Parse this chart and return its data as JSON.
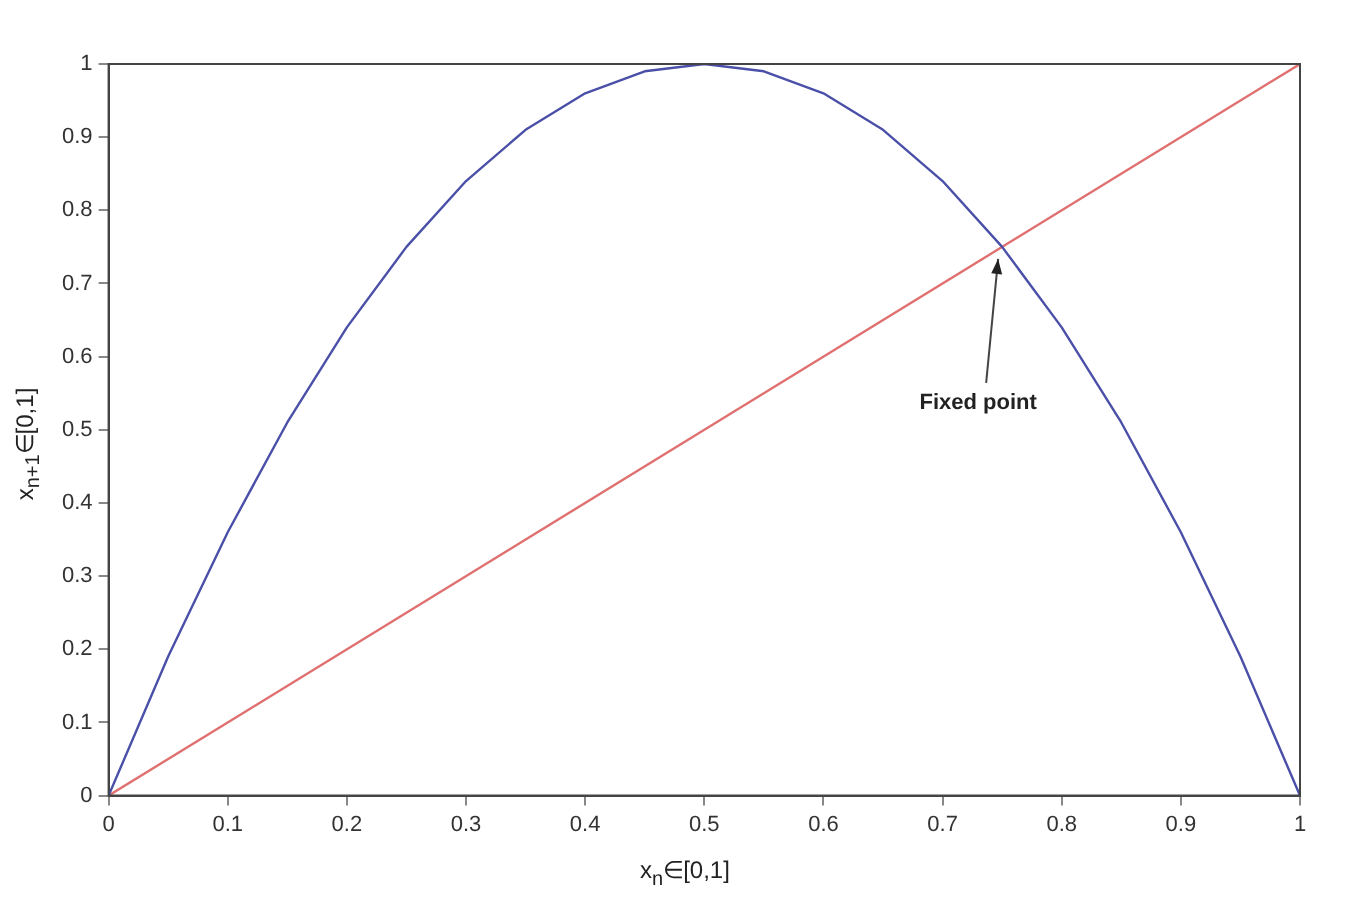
{
  "chart_data": {
    "type": "line",
    "xlabel": "x$_{n}$∈[0,1]",
    "ylabel": "x$_{n+1}$∈[0,1]",
    "xlim": [
      0,
      1
    ],
    "ylim": [
      0,
      1
    ],
    "xticks": [
      0,
      0.1,
      0.2,
      0.3,
      0.4,
      0.5,
      0.6,
      0.7,
      0.8,
      0.9,
      1
    ],
    "yticks": [
      0,
      0.1,
      0.2,
      0.3,
      0.4,
      0.5,
      0.6,
      0.7,
      0.8,
      0.9,
      1
    ],
    "grid": false,
    "legend": false,
    "marker": "none",
    "line_style": "solid",
    "series": [
      {
        "color": "#4a4fa8",
        "x": [
          0,
          0.05,
          0.1,
          0.15,
          0.2,
          0.25,
          0.3,
          0.35,
          0.4,
          0.45,
          0.5,
          0.55,
          0.6,
          0.65,
          0.7,
          0.75,
          0.8,
          0.85,
          0.9,
          0.95,
          1
        ],
        "values": [
          0,
          0.19,
          0.36,
          0.51,
          0.64,
          0.75,
          0.84,
          0.91,
          0.96,
          0.99,
          1,
          0.99,
          0.96,
          0.91,
          0.84,
          0.75,
          0.64,
          0.51,
          0.36,
          0.19,
          0
        ]
      },
      {
        "color": "#e07070",
        "x": [
          0,
          1
        ],
        "values": [
          0,
          1
        ]
      }
    ],
    "annotations": [
      {
        "text": "Fixed point",
        "x": 0.75,
        "y": 0.75
      }
    ]
  }
}
